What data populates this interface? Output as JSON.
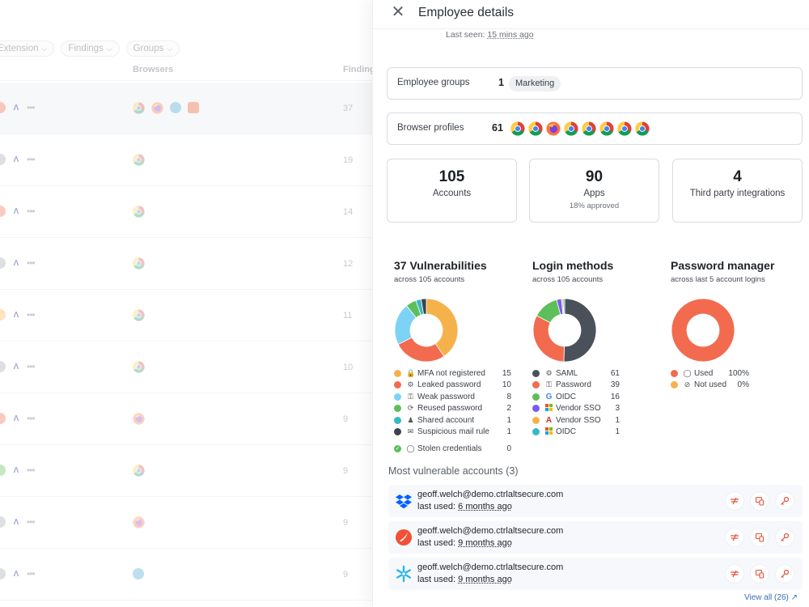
{
  "background_table": {
    "filters": [
      "Extension",
      "Findings",
      "Groups"
    ],
    "columns": {
      "browsers": "Browsers",
      "findings": "Findings"
    },
    "row_counts": [
      "37",
      "19",
      "14",
      "12",
      "11",
      "10",
      "9",
      "9",
      "9",
      "9"
    ]
  },
  "panel": {
    "title": "Employee details",
    "last_seen_label": "Last seen:",
    "last_seen_value": "15 mins ago",
    "employee_groups": {
      "label": "Employee groups",
      "count": "1",
      "tag": "Marketing"
    },
    "browser_profiles": {
      "label": "Browser profiles",
      "count": "61",
      "icons": [
        "chrome-icon",
        "chrome-icon",
        "firefox-icon",
        "chrome-icon",
        "chrome-icon",
        "chrome-icon",
        "chrome-icon",
        "chrome-icon"
      ]
    },
    "stats": [
      {
        "value": "105",
        "label": "Accounts",
        "sub": ""
      },
      {
        "value": "90",
        "label": "Apps",
        "sub": "18% approved"
      },
      {
        "value": "4",
        "label": "Third party integrations",
        "sub": ""
      }
    ],
    "vulnerabilities": {
      "title": "37 Vulnerabilities",
      "subtitle": "across 105 accounts",
      "items": [
        {
          "label": "MFA not registered",
          "value": "15",
          "color": "#f6b24a",
          "icon": "lock-icon"
        },
        {
          "label": "Leaked password",
          "value": "10",
          "color": "#f26b4f",
          "icon": "key-leak-icon"
        },
        {
          "label": "Weak password",
          "value": "8",
          "color": "#7dd3f5",
          "icon": "key-icon"
        },
        {
          "label": "Reused password",
          "value": "2",
          "color": "#5cbf5a",
          "icon": "refresh-icon"
        },
        {
          "label": "Shared account",
          "value": "1",
          "color": "#37b8c8",
          "icon": "users-icon"
        },
        {
          "label": "Suspicious mail rule",
          "value": "1",
          "color": "#3c434c",
          "icon": "mail-icon"
        },
        {
          "label": "Stolen credentials",
          "value": "0",
          "color": "#5cbf5a",
          "icon": "lock-open-icon"
        }
      ]
    },
    "login_methods": {
      "title": "Login methods",
      "subtitle": "across 105 accounts",
      "items": [
        {
          "label": "SAML",
          "value": "61",
          "color": "#4a515b",
          "icon": "gear-icon"
        },
        {
          "label": "Password",
          "value": "39",
          "color": "#f26b4f",
          "icon": "key-icon"
        },
        {
          "label": "OIDC",
          "value": "16",
          "color": "#5cbf5a",
          "icon": "google-icon"
        },
        {
          "label": "Vendor SSO",
          "value": "3",
          "color": "#7a5cf0",
          "icon": "microsoft-icon"
        },
        {
          "label": "Vendor SSO",
          "value": "1",
          "color": "#f6b24a",
          "icon": "adobe-icon"
        },
        {
          "label": "OIDC",
          "value": "1",
          "color": "#37b8c8",
          "icon": "microsoft-icon"
        }
      ]
    },
    "password_manager": {
      "title": "Password manager",
      "subtitle": "across last 5 account logins",
      "items": [
        {
          "label": "Used",
          "value": "100%",
          "color": "#f26b4f",
          "icon": "shield-icon"
        },
        {
          "label": "Not used",
          "value": "0%",
          "color": "#f6b24a",
          "icon": "shield-off-icon"
        }
      ]
    },
    "most_vulnerable": {
      "title": "Most vulnerable accounts (3)",
      "accounts": [
        {
          "email": "geoff.welch@demo.ctrlaltsecure.com",
          "last_used_label": "last used:",
          "last_used": "6 months ago",
          "logo": "dropbox-icon"
        },
        {
          "email": "geoff.welch@demo.ctrlaltsecure.com",
          "last_used_label": "last used:",
          "last_used": "9 months ago",
          "logo": "swift-icon"
        },
        {
          "email": "geoff.welch@demo.ctrlaltsecure.com",
          "last_used_label": "last used:",
          "last_used": "9 months ago",
          "logo": "snowflake-icon"
        }
      ],
      "view_all": "View all (26)"
    }
  }
}
